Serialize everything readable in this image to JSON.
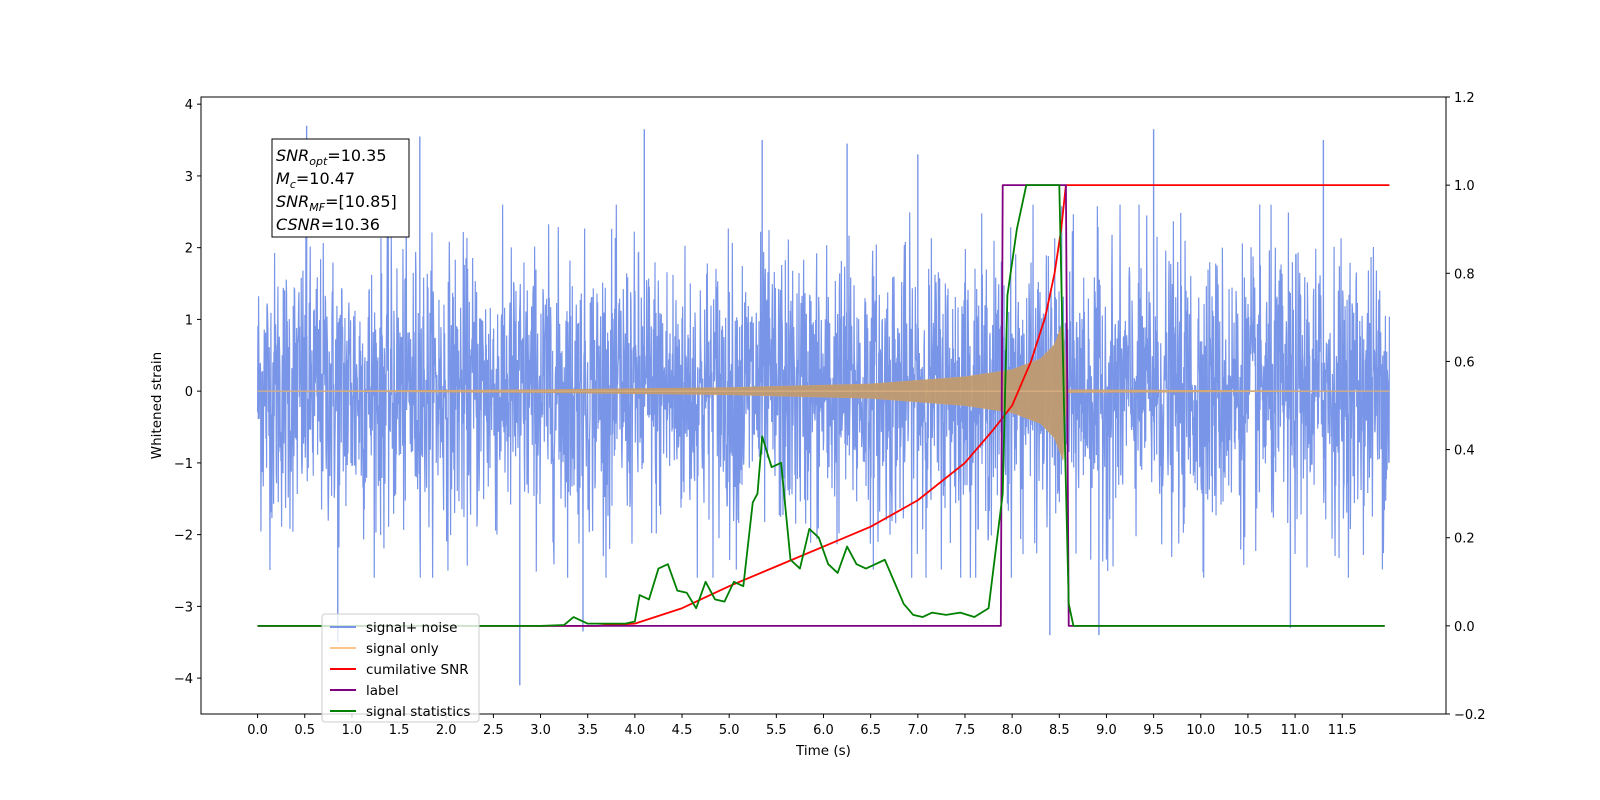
{
  "chart_data": {
    "type": "line",
    "xlabel": "Time (s)",
    "ylabel": "Whitened strain",
    "xlim": [
      -0.6,
      12.6
    ],
    "ylim": [
      -4.5,
      4.1
    ],
    "y2lim": [
      -0.2,
      1.2
    ],
    "x_ticks": [
      0.0,
      0.5,
      1.0,
      1.5,
      2.0,
      2.5,
      3.0,
      3.5,
      4.0,
      4.5,
      5.0,
      5.5,
      6.0,
      6.5,
      7.0,
      7.5,
      8.0,
      8.5,
      9.0,
      9.5,
      10.0,
      10.5,
      11.0,
      11.5
    ],
    "x_tick_labels": [
      "0.0",
      "0.5",
      "1.0",
      "1.5",
      "2.0",
      "2.5",
      "3.0",
      "3.5",
      "4.0",
      "4.5",
      "5.0",
      "5.5",
      "6.0",
      "6.5",
      "7.0",
      "7.5",
      "8.0",
      "8.5",
      "9.0",
      "9.5",
      "10.0",
      "10.5",
      "11.0",
      "11.5"
    ],
    "y_ticks": [
      4,
      3,
      2,
      1,
      0,
      -1,
      -2,
      -3,
      -4
    ],
    "y_tick_labels": [
      "4",
      "3",
      "2",
      "1",
      "0",
      "−1",
      "−2",
      "−3",
      "−4"
    ],
    "y2_ticks": [
      1.2,
      1.0,
      0.8,
      0.6,
      0.4,
      0.2,
      0.0,
      -0.2
    ],
    "y2_tick_labels": [
      "1.2",
      "1.0",
      "0.8",
      "0.6",
      "0.4",
      "0.2",
      "0.0",
      "−0.2"
    ],
    "grid": false,
    "legend_position": "lower-left",
    "annotation": {
      "lines": [
        {
          "base": "SNR",
          "sub": "opt",
          "value": "=10.35"
        },
        {
          "base": "M",
          "sub": "c",
          "value": "=10.47"
        },
        {
          "base": "SNR",
          "sub": "MF",
          "value": "=[10.85]"
        },
        {
          "base": "CSNR",
          "sub": "",
          "value": "=10.36"
        }
      ]
    },
    "series": [
      {
        "name": "signal+ noise",
        "axis": "left",
        "color": "#7895e8",
        "x_range": [
          0.0,
          12.0
        ],
        "amplitude_typical": 1.9,
        "amplitude_max": 3.7,
        "spikes": [
          {
            "x": 0.52,
            "y": 3.7
          },
          {
            "x": 1.72,
            "y": 3.55
          },
          {
            "x": 4.1,
            "y": 3.65
          },
          {
            "x": 5.35,
            "y": 3.5
          },
          {
            "x": 6.25,
            "y": 3.45
          },
          {
            "x": 7.0,
            "y": 3.3
          },
          {
            "x": 9.5,
            "y": 3.65
          },
          {
            "x": 11.3,
            "y": 3.5
          },
          {
            "x": 2.78,
            "y": -4.1
          },
          {
            "x": 3.45,
            "y": -3.35
          },
          {
            "x": 8.4,
            "y": -3.4
          },
          {
            "x": 8.92,
            "y": -3.4
          },
          {
            "x": 10.95,
            "y": -3.3
          },
          {
            "x": 0.85,
            "y": -3.5
          }
        ]
      },
      {
        "name": "signal only",
        "axis": "left",
        "color": "#ffc48a",
        "x_range": [
          0.0,
          12.0
        ],
        "envelope": [
          [
            0.0,
            0.0
          ],
          [
            3.0,
            0.02
          ],
          [
            5.0,
            0.05
          ],
          [
            6.5,
            0.1
          ],
          [
            7.5,
            0.2
          ],
          [
            8.0,
            0.3
          ],
          [
            8.3,
            0.45
          ],
          [
            8.45,
            0.65
          ],
          [
            8.55,
            1.0
          ],
          [
            8.57,
            0.02
          ],
          [
            12.0,
            0.0
          ]
        ]
      },
      {
        "name": "cumilative SNR",
        "axis": "right",
        "color": "#ff0000",
        "x": [
          0.0,
          3.6,
          4.0,
          4.5,
          5.0,
          5.5,
          6.0,
          6.5,
          7.0,
          7.5,
          7.8,
          8.0,
          8.2,
          8.35,
          8.45,
          8.52,
          8.55,
          8.57,
          12.0
        ],
        "y": [
          0.0,
          0.0,
          0.005,
          0.04,
          0.09,
          0.135,
          0.18,
          0.225,
          0.285,
          0.37,
          0.445,
          0.5,
          0.6,
          0.7,
          0.8,
          0.9,
          0.96,
          1.0,
          1.0
        ]
      },
      {
        "name": "label",
        "axis": "right",
        "color": "#800080",
        "x": [
          0.0,
          7.88,
          7.9,
          8.57,
          8.6,
          11.95
        ],
        "y": [
          0.0,
          0.0,
          1.0,
          1.0,
          0.0,
          0.0
        ]
      },
      {
        "name": "signal statistics",
        "axis": "right",
        "color": "#008000",
        "x": [
          0.0,
          3.0,
          3.25,
          3.35,
          3.5,
          3.9,
          4.0,
          4.05,
          4.15,
          4.25,
          4.35,
          4.45,
          4.55,
          4.65,
          4.75,
          4.85,
          4.95,
          5.05,
          5.15,
          5.25,
          5.3,
          5.35,
          5.45,
          5.55,
          5.65,
          5.75,
          5.85,
          5.95,
          6.05,
          6.15,
          6.25,
          6.35,
          6.45,
          6.55,
          6.65,
          6.75,
          6.85,
          6.95,
          7.05,
          7.15,
          7.3,
          7.45,
          7.6,
          7.75,
          7.9,
          7.95,
          8.05,
          8.15,
          8.3,
          8.5,
          8.55,
          8.6,
          8.65,
          11.95
        ],
        "y": [
          0.0,
          0.0,
          0.002,
          0.02,
          0.005,
          0.005,
          0.01,
          0.07,
          0.06,
          0.13,
          0.14,
          0.08,
          0.075,
          0.04,
          0.1,
          0.06,
          0.055,
          0.1,
          0.09,
          0.28,
          0.3,
          0.43,
          0.36,
          0.37,
          0.15,
          0.13,
          0.22,
          0.2,
          0.14,
          0.12,
          0.18,
          0.14,
          0.13,
          0.14,
          0.15,
          0.1,
          0.05,
          0.025,
          0.02,
          0.03,
          0.025,
          0.03,
          0.02,
          0.04,
          0.3,
          0.75,
          0.9,
          1.0,
          1.0,
          1.0,
          0.5,
          0.05,
          0.0,
          0.0
        ]
      }
    ]
  }
}
